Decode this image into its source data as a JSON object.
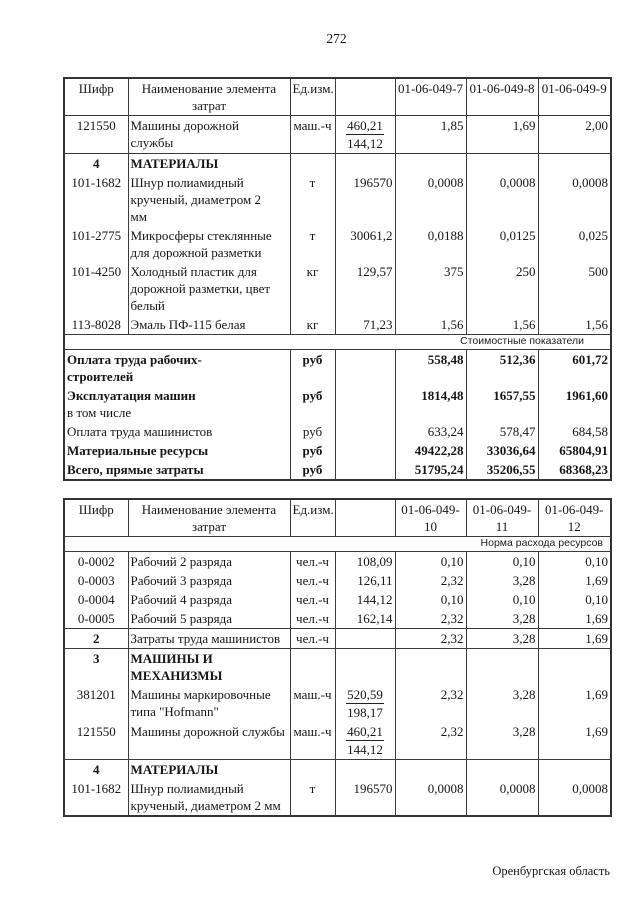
{
  "page": {
    "number": "272",
    "footer": "Оренбургская область"
  },
  "tables": [
    {
      "id": "t1",
      "headers": [
        "Шифр",
        "Наименование элемента затрат",
        "Ед.изм.",
        "",
        "01-06-049-7",
        "01-06-049-8",
        "01-06-049-9"
      ],
      "rows": [
        {
          "code": "121550",
          "name": [
            {
              "t": "Машины дорожной",
              "b": false
            },
            {
              "t": "службы",
              "b": false
            }
          ],
          "unit": "маш.-ч",
          "value": {
            "top": "460,21",
            "bot": "144,12"
          },
          "vals": [
            "1,85",
            "1,69",
            "2,00"
          ]
        },
        {
          "sep": true,
          "code": "4",
          "codeBold": true,
          "name": [
            {
              "t": "МАТЕРИАЛЫ",
              "b": true
            }
          ],
          "unit": "",
          "value": "",
          "vals": [
            "",
            "",
            ""
          ]
        },
        {
          "code": "101-1682",
          "name": [
            {
              "t": "Шнур полиамидный",
              "b": false
            },
            {
              "t": "крученый, диаметром 2",
              "b": false
            },
            {
              "t": "мм",
              "b": false
            }
          ],
          "unit": "т",
          "value": "196570",
          "vals": [
            "0,0008",
            "0,0008",
            "0,0008"
          ]
        },
        {
          "code": "101-2775",
          "name": [
            {
              "t": "Микросферы стеклянные",
              "b": false
            },
            {
              "t": "для дорожной разметки",
              "b": false
            }
          ],
          "unit": "т",
          "value": "30061,2",
          "vals": [
            "0,0188",
            "0,0125",
            "0,025"
          ]
        },
        {
          "code": "101-4250",
          "name": [
            {
              "t": "Холодный пластик для",
              "b": false
            },
            {
              "t": "дорожной разметки, цвет",
              "b": false
            },
            {
              "t": "белый",
              "b": false
            }
          ],
          "unit": "кг",
          "value": "129,57",
          "vals": [
            "375",
            "250",
            "500"
          ]
        },
        {
          "code": "113-8028",
          "name": [
            {
              "t": "Эмаль ПФ-115 белая",
              "b": false
            }
          ],
          "unit": "кг",
          "value": "71,23",
          "vals": [
            "1,56",
            "1,56",
            "1,56"
          ]
        },
        {
          "band": "Стоимостные показатели"
        },
        {
          "merged": true,
          "bold": true,
          "name": [
            {
              "t": "Оплата труда рабочих-",
              "b": true
            },
            {
              "t": "строителей",
              "b": true
            }
          ],
          "unit": "руб",
          "value": "",
          "vals": [
            "558,48",
            "512,36",
            "601,72"
          ]
        },
        {
          "merged": true,
          "bold": true,
          "name": [
            {
              "t": "Эксплуатация машин",
              "b": true
            },
            {
              "t": "в том числе",
              "b": false
            }
          ],
          "unit": "руб",
          "value": "",
          "vals": [
            "1814,48",
            "1657,55",
            "1961,60"
          ]
        },
        {
          "merged": true,
          "bold": false,
          "name": [
            {
              "t": "Оплата труда машинистов",
              "b": false
            }
          ],
          "unit": "руб",
          "value": "",
          "vals": [
            "633,24",
            "578,47",
            "684,58"
          ]
        },
        {
          "merged": true,
          "bold": true,
          "name": [
            {
              "t": "Материальные ресурсы",
              "b": true
            }
          ],
          "unit": "руб",
          "value": "",
          "vals": [
            "49422,28",
            "33036,64",
            "65804,91"
          ]
        },
        {
          "merged": true,
          "bold": true,
          "name": [
            {
              "t": "Всего, прямые затраты",
              "b": true
            }
          ],
          "unit": "руб",
          "value": "",
          "vals": [
            "51795,24",
            "35206,55",
            "68368,23"
          ]
        }
      ]
    },
    {
      "id": "t2",
      "headers": [
        "Шифр",
        "Наименование элемента затрат",
        "Ед.изм.",
        "",
        "01-06-049-10",
        "01-06-049-11",
        "01-06-049-12"
      ],
      "rows": [
        {
          "band": "Норма расхода ресурсов"
        },
        {
          "code": "0-0002",
          "name": [
            {
              "t": "Рабочий 2 разряда",
              "b": false
            }
          ],
          "unit": "чел.-ч",
          "value": "108,09",
          "vals": [
            "0,10",
            "0,10",
            "0,10"
          ]
        },
        {
          "code": "0-0003",
          "name": [
            {
              "t": "Рабочий 3 разряда",
              "b": false
            }
          ],
          "unit": "чел.-ч",
          "value": "126,11",
          "vals": [
            "2,32",
            "3,28",
            "1,69"
          ]
        },
        {
          "code": "0-0004",
          "name": [
            {
              "t": "Рабочий 4 разряда",
              "b": false
            }
          ],
          "unit": "чел.-ч",
          "value": "144,12",
          "vals": [
            "0,10",
            "0,10",
            "0,10"
          ]
        },
        {
          "code": "0-0005",
          "name": [
            {
              "t": "Рабочий 5 разряда",
              "b": false
            }
          ],
          "unit": "чел.-ч",
          "value": "162,14",
          "vals": [
            "2,32",
            "3,28",
            "1,69"
          ]
        },
        {
          "sep": true,
          "code": "2",
          "codeBold": true,
          "name": [
            {
              "t": "Затраты труда машинистов",
              "b": false
            }
          ],
          "unit": "чел.-ч",
          "value": "",
          "vals": [
            "2,32",
            "3,28",
            "1,69"
          ]
        },
        {
          "sep": true,
          "code": "3",
          "codeBold": true,
          "name": [
            {
              "t": "МАШИНЫ И",
              "b": true
            },
            {
              "t": "МЕХАНИЗМЫ",
              "b": true
            }
          ],
          "unit": "",
          "value": "",
          "vals": [
            "",
            "",
            ""
          ]
        },
        {
          "code": "381201",
          "name": [
            {
              "t": "Машины маркировочные",
              "b": false
            },
            {
              "t": "типа \"Hofmann\"",
              "b": false
            }
          ],
          "unit": "маш.-ч",
          "value": {
            "top": "520,59",
            "bot": "198,17"
          },
          "vals": [
            "2,32",
            "3,28",
            "1,69"
          ]
        },
        {
          "code": "121550",
          "name": [
            {
              "t": "Машины дорожной службы",
              "b": false
            }
          ],
          "unit": "маш.-ч",
          "value": {
            "top": "460,21",
            "bot": "144,12"
          },
          "vals": [
            "2,32",
            "3,28",
            "1,69"
          ]
        },
        {
          "sep": true,
          "code": "4",
          "codeBold": true,
          "name": [
            {
              "t": "МАТЕРИАЛЫ",
              "b": true
            }
          ],
          "unit": "",
          "value": "",
          "vals": [
            "",
            "",
            ""
          ]
        },
        {
          "code": "101-1682",
          "name": [
            {
              "t": "Шнур полиамидный",
              "b": false
            },
            {
              "t": "крученый, диаметром 2 мм",
              "b": false
            }
          ],
          "unit": "т",
          "value": "196570",
          "vals": [
            "0,0008",
            "0,0008",
            "0,0008"
          ]
        }
      ]
    }
  ]
}
